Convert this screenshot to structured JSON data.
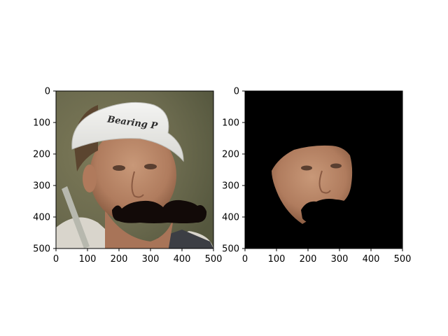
{
  "chart_data": [
    {
      "type": "image",
      "image_content": "photo of a man in a white visor cap with 'Bearing' lettering, with a large black cartoon mustache drawn over his mouth area",
      "xlim": [
        0,
        500
      ],
      "ylim": [
        500,
        0
      ],
      "x_ticks": [
        "0",
        "100",
        "200",
        "300",
        "400",
        "500"
      ],
      "y_ticks": [
        "0",
        "100",
        "200",
        "300",
        "400",
        "500"
      ],
      "title": "",
      "xlabel": "",
      "ylabel": ""
    },
    {
      "type": "image",
      "image_content": "same face masked: only the face region kept on a black background, with a black mustache-shaped occlusion over the mouth",
      "xlim": [
        0,
        500
      ],
      "ylim": [
        500,
        0
      ],
      "x_ticks": [
        "0",
        "100",
        "200",
        "300",
        "400",
        "500"
      ],
      "y_ticks": [
        "0",
        "100",
        "200",
        "300",
        "400",
        "500"
      ],
      "title": "",
      "xlabel": "",
      "ylabel": ""
    }
  ],
  "cap_text": "Bearing P"
}
